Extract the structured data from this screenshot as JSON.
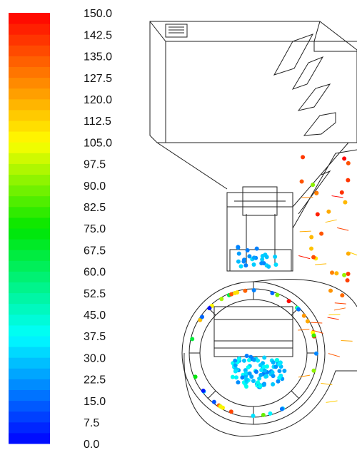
{
  "colorbar": {
    "lim": [
      0,
      150
    ],
    "ticks": [
      {
        "value": 150,
        "label": "150.0"
      },
      {
        "value": 142.5,
        "label": "142.5"
      },
      {
        "value": 135,
        "label": "135.0"
      },
      {
        "value": 127.5,
        "label": "127.5"
      },
      {
        "value": 120,
        "label": "120.0"
      },
      {
        "value": 112.5,
        "label": "112.5"
      },
      {
        "value": 105,
        "label": "105.0"
      },
      {
        "value": 97.5,
        "label": "97.5"
      },
      {
        "value": 90,
        "label": "90.0"
      },
      {
        "value": 82.5,
        "label": "82.5"
      },
      {
        "value": 75,
        "label": "75.0"
      },
      {
        "value": 67.5,
        "label": "67.5"
      },
      {
        "value": 60,
        "label": "60.0"
      },
      {
        "value": 52.5,
        "label": "52.5"
      },
      {
        "value": 45,
        "label": "45.0"
      },
      {
        "value": 37.5,
        "label": "37.5"
      },
      {
        "value": 30,
        "label": "30.0"
      },
      {
        "value": 22.5,
        "label": "22.5"
      },
      {
        "value": 15,
        "label": "15.0"
      },
      {
        "value": 7.5,
        "label": "7.5"
      },
      {
        "value": 0,
        "label": "0.0"
      }
    ]
  }
}
